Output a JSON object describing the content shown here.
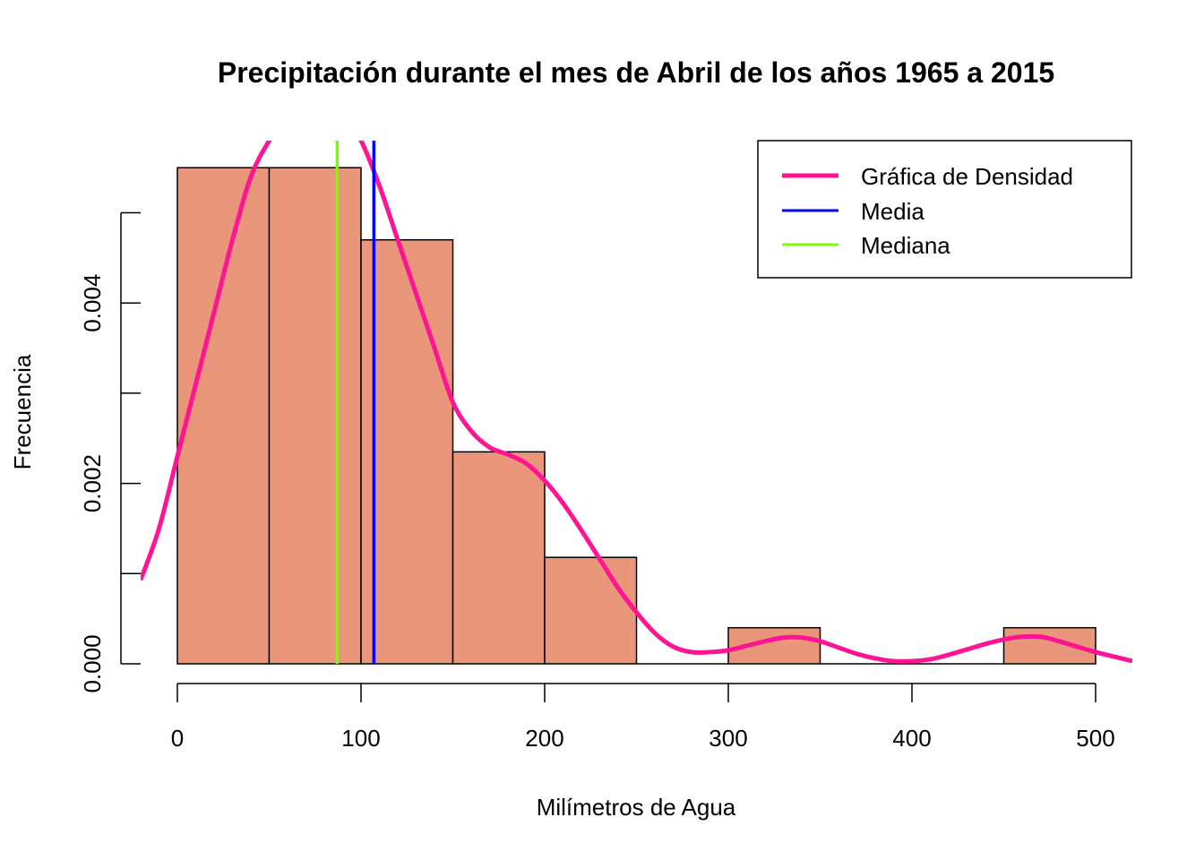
{
  "chart_data": {
    "type": "histogram",
    "title": "Precipitación durante el mes de Abril de los años 1965 a 2015",
    "xlabel": "Milímetros de Agua",
    "ylabel": "Frecuencia",
    "xlim": [
      -20,
      520
    ],
    "ylim": [
      0,
      0.0058
    ],
    "x_ticks": [
      0,
      100,
      200,
      300,
      400,
      500
    ],
    "x_tick_labels": [
      "0",
      "100",
      "200",
      "300",
      "400",
      "500"
    ],
    "y_ticks": [
      0,
      0.001,
      0.002,
      0.003,
      0.004,
      0.005
    ],
    "y_tick_labels": [
      "0.000",
      "0.002",
      "0.004"
    ],
    "y_labeled_ticks": [
      0,
      0.002,
      0.004
    ],
    "bins": [
      {
        "x0": 0,
        "x1": 50,
        "density": 0.0055
      },
      {
        "x0": 50,
        "x1": 100,
        "density": 0.0055
      },
      {
        "x0": 100,
        "x1": 150,
        "density": 0.0047
      },
      {
        "x0": 150,
        "x1": 200,
        "density": 0.00235
      },
      {
        "x0": 200,
        "x1": 250,
        "density": 0.00118
      },
      {
        "x0": 250,
        "x1": 300,
        "density": 0
      },
      {
        "x0": 300,
        "x1": 350,
        "density": 0.0004
      },
      {
        "x0": 350,
        "x1": 400,
        "density": 0
      },
      {
        "x0": 400,
        "x1": 450,
        "density": 0
      },
      {
        "x0": 450,
        "x1": 500,
        "density": 0.0004
      }
    ],
    "density_curve": {
      "name": "Gráfica de Densidad",
      "color": "#FF1493",
      "points": [
        [
          -20,
          0.00093
        ],
        [
          -10,
          0.0015
        ],
        [
          0,
          0.0023
        ],
        [
          10,
          0.0031
        ],
        [
          20,
          0.0039
        ],
        [
          30,
          0.0047
        ],
        [
          40,
          0.0054
        ],
        [
          50,
          0.0058
        ],
        [
          60,
          0.0061
        ],
        [
          70,
          0.0062
        ],
        [
          80,
          0.0062
        ],
        [
          90,
          0.0061
        ],
        [
          100,
          0.0058
        ],
        [
          110,
          0.0053
        ],
        [
          120,
          0.0047
        ],
        [
          130,
          0.0041
        ],
        [
          140,
          0.0035
        ],
        [
          150,
          0.0029
        ],
        [
          160,
          0.00258
        ],
        [
          170,
          0.0024
        ],
        [
          180,
          0.00232
        ],
        [
          190,
          0.00222
        ],
        [
          200,
          0.00203
        ],
        [
          210,
          0.00178
        ],
        [
          220,
          0.00148
        ],
        [
          230,
          0.00116
        ],
        [
          240,
          0.00084
        ],
        [
          250,
          0.00057
        ],
        [
          260,
          0.00034
        ],
        [
          270,
          0.00019
        ],
        [
          280,
          0.00013
        ],
        [
          290,
          0.00013
        ],
        [
          300,
          0.00015
        ],
        [
          310,
          0.0002
        ],
        [
          320,
          0.00025
        ],
        [
          330,
          0.00029
        ],
        [
          340,
          0.00029
        ],
        [
          350,
          0.00025
        ],
        [
          360,
          0.00018
        ],
        [
          370,
          0.00011
        ],
        [
          380,
          6e-05
        ],
        [
          390,
          3e-05
        ],
        [
          400,
          3e-05
        ],
        [
          410,
          5e-05
        ],
        [
          420,
          0.0001
        ],
        [
          430,
          0.00016
        ],
        [
          440,
          0.00022
        ],
        [
          450,
          0.00027
        ],
        [
          460,
          0.0003
        ],
        [
          470,
          0.0003
        ],
        [
          480,
          0.00025
        ],
        [
          490,
          0.00019
        ],
        [
          500,
          0.00013
        ],
        [
          510,
          8e-05
        ],
        [
          520,
          3e-05
        ]
      ]
    },
    "vlines": [
      {
        "name": "Media",
        "x": 107,
        "color": "#0000FF"
      },
      {
        "name": "Mediana",
        "x": 87,
        "color": "#7CFC00"
      }
    ],
    "bar_fill": "#E9967A",
    "bar_stroke": "#000000",
    "legend": {
      "position": "top-right",
      "entries": [
        {
          "label": "Gráfica de Densidad",
          "color": "#FF1493"
        },
        {
          "label": "Media",
          "color": "#0000FF"
        },
        {
          "label": "Mediana",
          "color": "#7CFC00"
        }
      ]
    },
    "grid": false
  }
}
